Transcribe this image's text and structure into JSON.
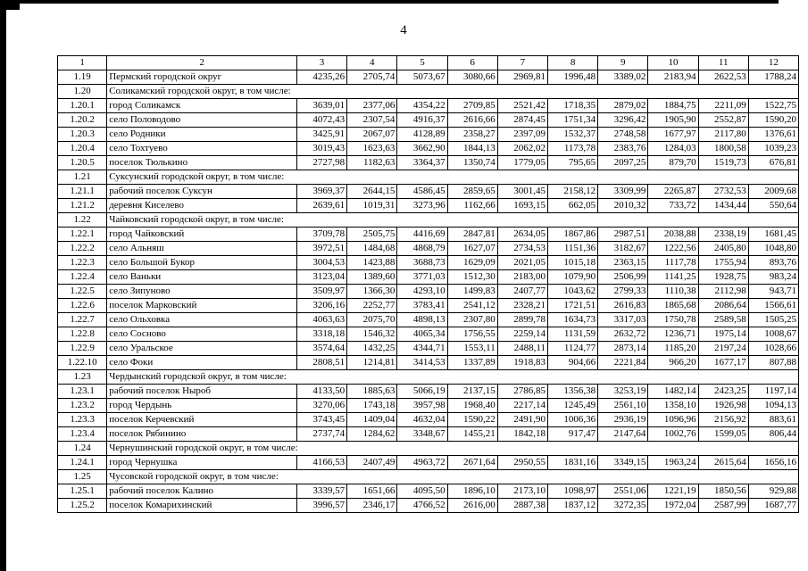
{
  "page": {
    "number": "4"
  },
  "table": {
    "columns": [
      "1",
      "2",
      "3",
      "4",
      "5",
      "6",
      "7",
      "8",
      "9",
      "10",
      "11",
      "12"
    ],
    "rows": [
      {
        "num": "1.19",
        "name": "Пермский городской округ",
        "values": [
          "4235,26",
          "2705,74",
          "5073,67",
          "3080,66",
          "2969,81",
          "1996,48",
          "3389,02",
          "2183,94",
          "2622,53",
          "1788,24"
        ]
      },
      {
        "num": "1.20",
        "name": "Соликамский городской округ, в том числе:"
      },
      {
        "num": "1.20.1",
        "name": "город Соликамск",
        "values": [
          "3639,01",
          "2377,06",
          "4354,22",
          "2709,85",
          "2521,42",
          "1718,35",
          "2879,02",
          "1884,75",
          "2211,09",
          "1522,75"
        ]
      },
      {
        "num": "1.20.2",
        "name": "село Половодово",
        "values": [
          "4072,43",
          "2307,54",
          "4916,37",
          "2616,66",
          "2874,45",
          "1751,34",
          "3296,42",
          "1905,90",
          "2552,87",
          "1590,20"
        ]
      },
      {
        "num": "1.20.3",
        "name": "село Родники",
        "values": [
          "3425,91",
          "2067,07",
          "4128,89",
          "2358,27",
          "2397,09",
          "1532,37",
          "2748,58",
          "1677,97",
          "2117,80",
          "1376,61"
        ]
      },
      {
        "num": "1.20.4",
        "name": "село Тохтуево",
        "values": [
          "3019,43",
          "1623,63",
          "3662,90",
          "1844,13",
          "2062,02",
          "1173,78",
          "2383,76",
          "1284,03",
          "1800,58",
          "1039,23"
        ]
      },
      {
        "num": "1.20.5",
        "name": "поселок Тюлькино",
        "values": [
          "2727,98",
          "1182,63",
          "3364,37",
          "1350,74",
          "1779,05",
          "795,65",
          "2097,25",
          "879,70",
          "1519,73",
          "676,81"
        ]
      },
      {
        "num": "1.21",
        "name": "Суксунский городской округ, в том числе:"
      },
      {
        "num": "1.21.1",
        "name": "рабочий поселок Суксун",
        "values": [
          "3969,37",
          "2644,15",
          "4586,45",
          "2859,65",
          "3001,45",
          "2158,12",
          "3309,99",
          "2265,87",
          "2732,53",
          "2009,68"
        ]
      },
      {
        "num": "1.21.2",
        "name": "деревня Киселево",
        "values": [
          "2639,61",
          "1019,31",
          "3273,96",
          "1162,66",
          "1693,15",
          "662,05",
          "2010,32",
          "733,72",
          "1434,44",
          "550,64"
        ]
      },
      {
        "num": "1.22",
        "name": "Чайковский городской округ, в том числе:"
      },
      {
        "num": "1.22.1",
        "name": "город Чайковский",
        "values": [
          "3709,78",
          "2505,75",
          "4416,69",
          "2847,81",
          "2634,05",
          "1867,86",
          "2987,51",
          "2038,88",
          "2338,19",
          "1681,45"
        ]
      },
      {
        "num": "1.22.2",
        "name": "село Альняш",
        "values": [
          "3972,51",
          "1484,68",
          "4868,79",
          "1627,07",
          "2734,53",
          "1151,36",
          "3182,67",
          "1222,56",
          "2405,80",
          "1048,80"
        ]
      },
      {
        "num": "1.22.3",
        "name": "село Большой Букор",
        "values": [
          "3004,53",
          "1423,88",
          "3688,73",
          "1629,09",
          "2021,05",
          "1015,18",
          "2363,15",
          "1117,78",
          "1755,94",
          "893,76"
        ]
      },
      {
        "num": "1.22.4",
        "name": "село Ваньки",
        "values": [
          "3123,04",
          "1389,60",
          "3771,03",
          "1512,30",
          "2183,00",
          "1079,90",
          "2506,99",
          "1141,25",
          "1928,75",
          "983,24"
        ]
      },
      {
        "num": "1.22.5",
        "name": "село Зипуново",
        "values": [
          "3509,97",
          "1366,30",
          "4293,10",
          "1499,83",
          "2407,77",
          "1043,62",
          "2799,33",
          "1110,38",
          "2112,98",
          "943,71"
        ]
      },
      {
        "num": "1.22.6",
        "name": "поселок Марковский",
        "values": [
          "3206,16",
          "2252,77",
          "3783,41",
          "2541,12",
          "2328,21",
          "1721,51",
          "2616,83",
          "1865,68",
          "2086,64",
          "1566,61"
        ]
      },
      {
        "num": "1.22.7",
        "name": "село Ольховка",
        "values": [
          "4063,63",
          "2075,70",
          "4898,13",
          "2307,80",
          "2899,78",
          "1634,73",
          "3317,03",
          "1750,78",
          "2589,58",
          "1505,25"
        ]
      },
      {
        "num": "1.22.8",
        "name": "село Сосново",
        "values": [
          "3318,18",
          "1546,32",
          "4065,34",
          "1756,55",
          "2259,14",
          "1131,59",
          "2632,72",
          "1236,71",
          "1975,14",
          "1008,67"
        ]
      },
      {
        "num": "1.22.9",
        "name": "село Уральское",
        "values": [
          "3574,64",
          "1432,25",
          "4344,71",
          "1553,11",
          "2488,11",
          "1124,77",
          "2873,14",
          "1185,20",
          "2197,24",
          "1028,66"
        ]
      },
      {
        "num": "1.22.10",
        "name": "село Фоки",
        "values": [
          "2808,51",
          "1214,81",
          "3414,53",
          "1337,89",
          "1918,83",
          "904,66",
          "2221,84",
          "966,20",
          "1677,17",
          "807,88"
        ]
      },
      {
        "num": "1.23",
        "name": "Чердынский городской округ, в том числе:"
      },
      {
        "num": "1.23.1",
        "name": "рабочий поселок Ныроб",
        "values": [
          "4133,50",
          "1885,63",
          "5066,19",
          "2137,15",
          "2786,85",
          "1356,38",
          "3253,19",
          "1482,14",
          "2423,25",
          "1197,14"
        ]
      },
      {
        "num": "1.23.2",
        "name": "город Чердынь",
        "values": [
          "3270,06",
          "1743,18",
          "3957,98",
          "1968,40",
          "2217,14",
          "1245,49",
          "2561,10",
          "1358,10",
          "1926,98",
          "1094,13"
        ]
      },
      {
        "num": "1.23.3",
        "name": "поселок Керчевский",
        "values": [
          "3743,45",
          "1409,04",
          "4632,04",
          "1590,22",
          "2491,90",
          "1006,36",
          "2936,19",
          "1096,96",
          "2156,92",
          "883,61"
        ]
      },
      {
        "num": "1.23.4",
        "name": "поселок Рябинино",
        "values": [
          "2737,74",
          "1284,62",
          "3348,67",
          "1455,21",
          "1842,18",
          "917,47",
          "2147,64",
          "1002,76",
          "1599,05",
          "806,44"
        ]
      },
      {
        "num": "1.24",
        "name": "Чернушинский городской округ, в том числе:"
      },
      {
        "num": "1.24.1",
        "name": "город Чернушка",
        "values": [
          "4166,53",
          "2407,49",
          "4963,72",
          "2671,64",
          "2950,55",
          "1831,16",
          "3349,15",
          "1963,24",
          "2615,64",
          "1656,16"
        ]
      },
      {
        "num": "1.25",
        "name": "Чусовской городской округ, в том числе:"
      },
      {
        "num": "1.25.1",
        "name": "рабочий поселок Калино",
        "values": [
          "3339,57",
          "1651,66",
          "4095,50",
          "1896,10",
          "2173,10",
          "1098,97",
          "2551,06",
          "1221,19",
          "1850,56",
          "929,88"
        ]
      },
      {
        "num": "1.25.2",
        "name": "поселок Комарихинский",
        "values": [
          "3996,57",
          "2346,17",
          "4766,52",
          "2616,00",
          "2887,38",
          "1837,12",
          "3272,35",
          "1972,04",
          "2587,99",
          "1687,77"
        ]
      }
    ]
  }
}
